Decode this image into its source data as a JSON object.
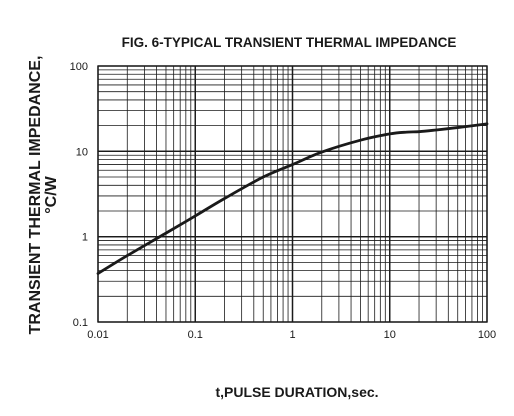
{
  "chart_data": {
    "type": "line",
    "title": "FIG. 6-TYPICAL TRANSIENT THERMAL IMPEDANCE",
    "xlabel": "t,PULSE DURATION,sec.",
    "ylabel_line1": "TRANSIENT THERMAL IMPEDANCE,",
    "ylabel_line2": "°C/W",
    "x_scale": "log",
    "y_scale": "log",
    "xlim": [
      0.01,
      100
    ],
    "ylim": [
      0.1,
      100
    ],
    "x_ticks": [
      {
        "value": 0.01,
        "label": "0.01"
      },
      {
        "value": 0.1,
        "label": "0.1"
      },
      {
        "value": 1,
        "label": "1"
      },
      {
        "value": 10,
        "label": "10"
      },
      {
        "value": 100,
        "label": "100"
      }
    ],
    "y_ticks": [
      {
        "value": 0.1,
        "label": "0.1"
      },
      {
        "value": 1,
        "label": "1"
      },
      {
        "value": 10,
        "label": "10"
      },
      {
        "value": 100,
        "label": "100"
      }
    ],
    "grid": true,
    "legend": "none",
    "series": [
      {
        "x": [
          0.01,
          0.02,
          0.05,
          0.1,
          0.2,
          0.5,
          1,
          2,
          5,
          10,
          15,
          20,
          30,
          50,
          100
        ],
        "y": [
          0.37,
          0.6,
          1.1,
          1.75,
          2.8,
          5.0,
          7.0,
          9.8,
          13.5,
          16.0,
          16.8,
          17.0,
          17.8,
          19.0,
          21.0
        ]
      }
    ],
    "line_color": "#1a1a1a",
    "grid_color": "#1a1a1a"
  }
}
